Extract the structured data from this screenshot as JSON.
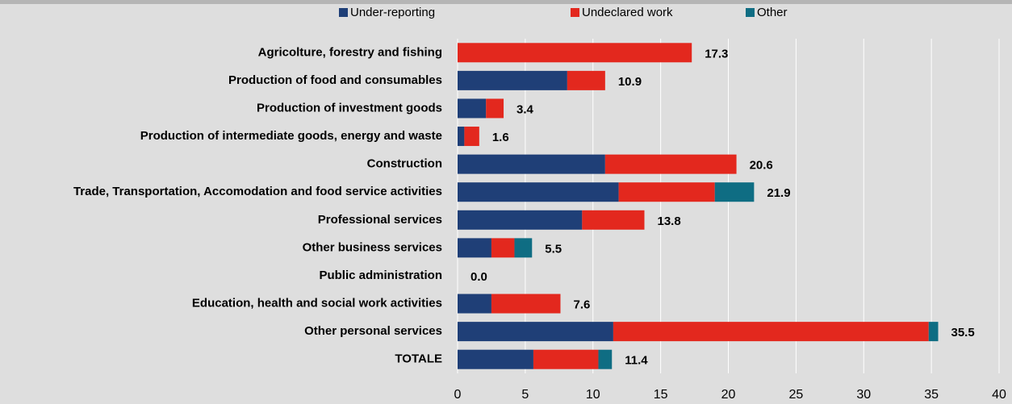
{
  "chart_data": {
    "type": "stacked-barh",
    "categories": [
      "Agricolture, forestry and fishing",
      "Production of food and consumables",
      "Production of investment goods",
      "Production of intermediate goods, energy and waste",
      "Construction",
      "Trade, Transportation, Accomodation and food service activities",
      "Professional services",
      "Other business services",
      "Public administration",
      "Education, health and social work activities",
      "Other personal services",
      "TOTALE"
    ],
    "series": [
      {
        "name": "Under-reporting",
        "color": "#1f3f77",
        "values": [
          0,
          8.1,
          2.1,
          0.5,
          10.9,
          11.9,
          9.2,
          2.5,
          0,
          2.5,
          11.5,
          5.6
        ]
      },
      {
        "name": "Undeclared work",
        "color": "#e3281e",
        "values": [
          17.3,
          2.8,
          1.3,
          1.1,
          9.7,
          7.1,
          4.6,
          1.7,
          0,
          5.1,
          23.3,
          4.8
        ]
      },
      {
        "name": "Other",
        "color": "#0f6d83",
        "values": [
          0,
          0,
          0,
          0,
          0,
          2.9,
          0,
          1.3,
          0,
          0,
          0.7,
          1.0
        ]
      }
    ],
    "totals": [
      17.3,
      10.9,
      3.4,
      1.6,
      20.6,
      21.9,
      13.8,
      5.5,
      0,
      7.6,
      35.5,
      11.4
    ],
    "total_labels": [
      "17.3",
      "10.9",
      "3.4",
      "1.6",
      "20.6",
      "21.9",
      "13.8",
      "5.5",
      "0.0",
      "7.6",
      "35.5",
      "11.4"
    ],
    "xlim": [
      0,
      40
    ],
    "xticks": [
      0,
      5,
      10,
      15,
      20,
      25,
      30,
      35,
      40
    ],
    "grid": true,
    "legend": "top"
  }
}
